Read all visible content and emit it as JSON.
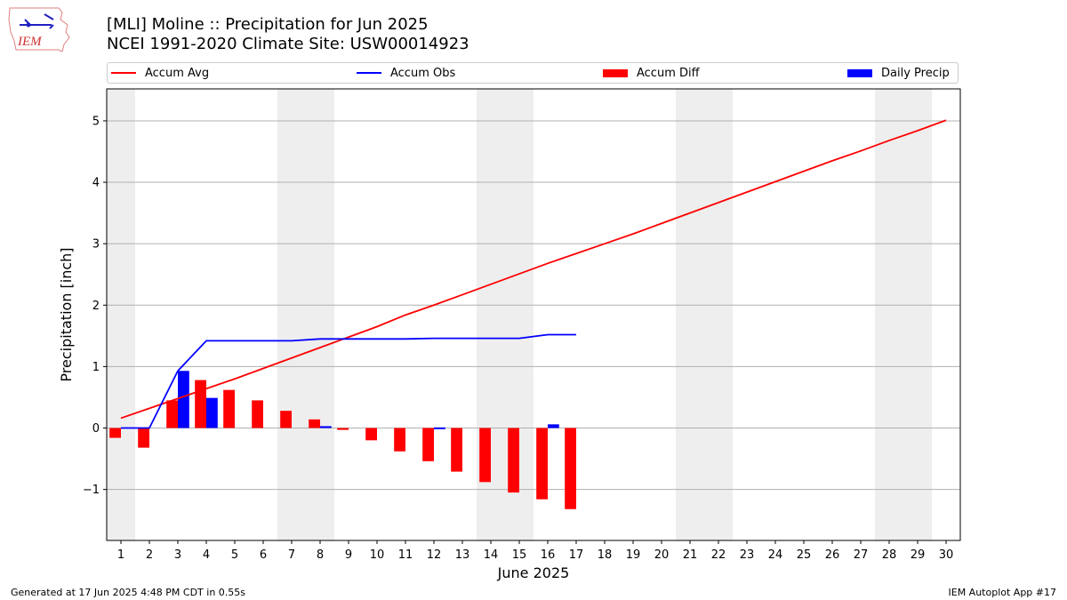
{
  "header": {
    "title_line1": "[MLI] Moline :: Precipitation for Jun 2025",
    "title_line2": "NCEI 1991-2020 Climate Site: USW00014923"
  },
  "logo": {
    "text": "IEM",
    "icon": "iowa-state-logo"
  },
  "footer": {
    "left": "Generated at 17 Jun 2025 4:48 PM CDT in 0.55s",
    "right": "IEM Autoplot App #17"
  },
  "legend": {
    "accum_avg": "Accum Avg",
    "accum_obs": "Accum Obs",
    "accum_diff": "Accum Diff",
    "daily_precip": "Daily Precip"
  },
  "colors": {
    "avg": "#ff0000",
    "obs": "#0000ff",
    "diff": "#ff0000",
    "daily": "#0000ff",
    "weekend_shade": "#eeeeee",
    "grid": "#b0b0b0"
  },
  "chart_data": {
    "type": "bar",
    "title": "[MLI] Moline :: Precipitation for Jun 2025",
    "subtitle": "NCEI 1991-2020 Climate Site: USW00014923",
    "xlabel": "June 2025",
    "ylabel": "Precipitation [inch]",
    "xlim": [
      0.5,
      30.5
    ],
    "ylim": [
      -1.83,
      5.52
    ],
    "yticks": [
      -1,
      0,
      1,
      2,
      3,
      4,
      5
    ],
    "ytick_labels": [
      "−1",
      "0",
      "1",
      "2",
      "3",
      "4",
      "5"
    ],
    "grid": "horizontal",
    "legend_position": "top",
    "shaded_days": [
      1,
      7,
      8,
      14,
      15,
      21,
      22,
      28,
      29
    ],
    "days": [
      1,
      2,
      3,
      4,
      5,
      6,
      7,
      8,
      9,
      10,
      11,
      12,
      13,
      14,
      15,
      16,
      17,
      18,
      19,
      20,
      21,
      22,
      23,
      24,
      25,
      26,
      27,
      28,
      29,
      30
    ],
    "series": [
      {
        "name": "Accum Avg",
        "kind": "line",
        "values": [
          0.16,
          0.32,
          0.48,
          0.64,
          0.8,
          0.97,
          1.14,
          1.31,
          1.48,
          1.65,
          1.84,
          2.0,
          2.17,
          2.34,
          2.51,
          2.68,
          2.84,
          3.0,
          3.16,
          3.33,
          3.5,
          3.67,
          3.84,
          4.01,
          4.18,
          4.35,
          4.51,
          4.68,
          4.84,
          5.01
        ]
      },
      {
        "name": "Accum Obs",
        "kind": "line",
        "values": [
          0.0,
          0.0,
          0.93,
          1.42,
          1.42,
          1.42,
          1.42,
          1.45,
          1.45,
          1.45,
          1.45,
          1.46,
          1.46,
          1.46,
          1.46,
          1.52,
          1.52
        ]
      },
      {
        "name": "Accum Diff",
        "kind": "bar",
        "values": [
          -0.16,
          -0.32,
          0.45,
          0.78,
          0.62,
          0.45,
          0.28,
          0.14,
          -0.03,
          -0.2,
          -0.38,
          -0.54,
          -0.71,
          -0.88,
          -1.05,
          -1.16,
          -1.32
        ]
      },
      {
        "name": "Daily Precip",
        "kind": "bar",
        "values": [
          0.0,
          0.0,
          0.93,
          0.49,
          0.0,
          0.0,
          0.0,
          0.03,
          0.0,
          0.0,
          0.0,
          0.01,
          0.0,
          0.0,
          0.0,
          0.06,
          0.0
        ]
      }
    ]
  }
}
